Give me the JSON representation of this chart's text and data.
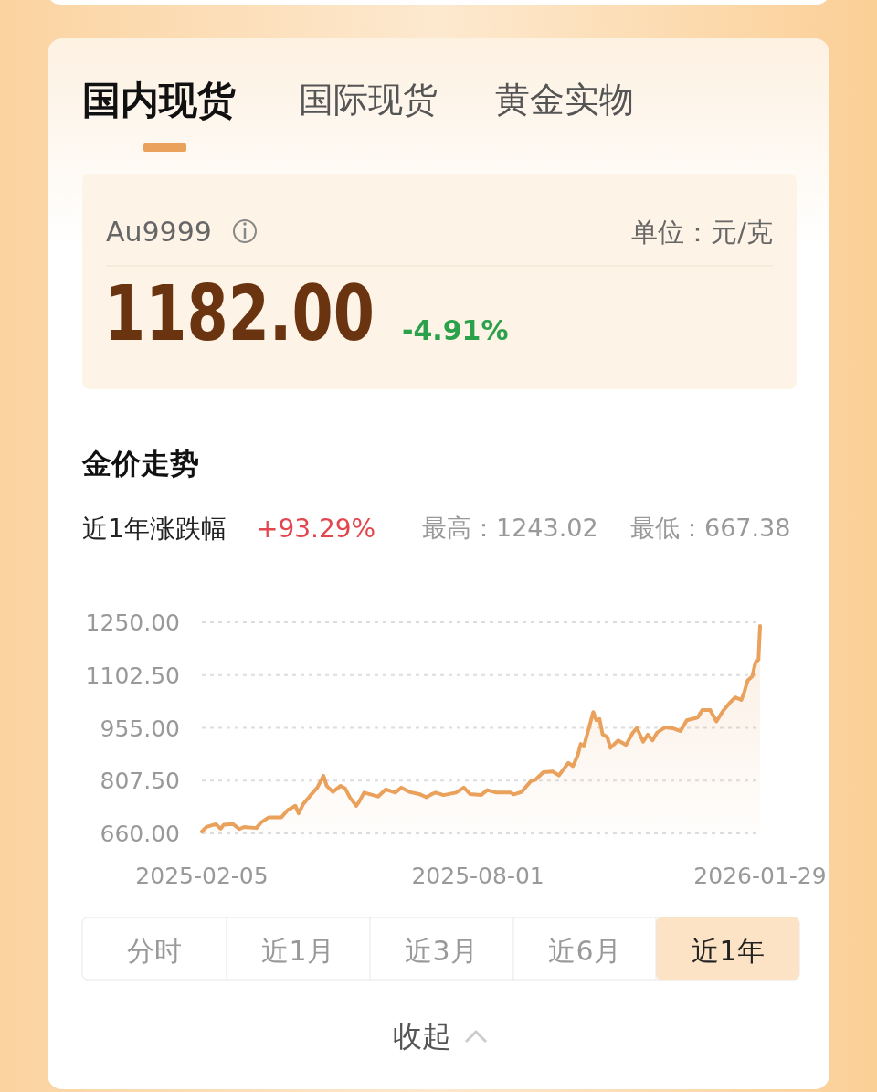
{
  "chart_data": {
    "type": "area",
    "title": "金价走势",
    "color": "#e9a15c",
    "grid": "y",
    "xlim": [
      "2025-02-05",
      "2026-01-29"
    ],
    "xticks": [
      "2025-02-05",
      "2025-08-01",
      "2026-01-29"
    ],
    "ylim": [
      660,
      1250
    ],
    "yticks": [
      {
        "value": 660,
        "label": "660.00"
      },
      {
        "value": 807.5,
        "label": "807.50"
      },
      {
        "value": 955,
        "label": "955.00"
      },
      {
        "value": 1102.5,
        "label": "1102.50"
      },
      {
        "value": 1250,
        "label": "1250.00"
      }
    ],
    "x": [
      "2025-02-05",
      "2025-02-08",
      "2025-02-14",
      "2025-02-17",
      "2025-02-19",
      "2025-02-25",
      "2025-03-01",
      "2025-03-04",
      "2025-03-12",
      "2025-03-15",
      "2025-03-20",
      "2025-03-28",
      "2025-04-01",
      "2025-04-06",
      "2025-04-08",
      "2025-04-11",
      "2025-04-15",
      "2025-04-20",
      "2025-04-24",
      "2025-04-26",
      "2025-04-30",
      "2025-05-05",
      "2025-05-08",
      "2025-05-11",
      "2025-05-15",
      "2025-05-17",
      "2025-05-20",
      "2025-05-29",
      "2025-06-03",
      "2025-06-09",
      "2025-06-13",
      "2025-06-18",
      "2025-06-25",
      "2025-06-29",
      "2025-07-03",
      "2025-07-05",
      "2025-07-10",
      "2025-07-18",
      "2025-07-23",
      "2025-07-27",
      "2025-08-03",
      "2025-08-07",
      "2025-08-13",
      "2025-08-22",
      "2025-08-24",
      "2025-08-29",
      "2025-09-04",
      "2025-09-07",
      "2025-09-12",
      "2025-09-18",
      "2025-09-22",
      "2025-09-28",
      "2025-10-01",
      "2025-10-04",
      "2025-10-06",
      "2025-10-08",
      "2025-10-14",
      "2025-10-16",
      "2025-10-18",
      "2025-10-20",
      "2025-10-23",
      "2025-10-25",
      "2025-10-30",
      "2025-11-04",
      "2025-11-08",
      "2025-11-11",
      "2025-11-15",
      "2025-11-18",
      "2025-11-21",
      "2025-11-24",
      "2025-11-29",
      "2025-12-04",
      "2025-12-09",
      "2025-12-13",
      "2025-12-20",
      "2025-12-23",
      "2025-12-28",
      "2026-01-01",
      "2026-01-05",
      "2026-01-10",
      "2026-01-13",
      "2026-01-17",
      "2026-01-19",
      "2026-01-21",
      "2026-01-24",
      "2026-01-26",
      "2026-01-28",
      "2026-01-29"
    ],
    "values": [
      665,
      678,
      686,
      673,
      684,
      686,
      672,
      678,
      675,
      691,
      705,
      705,
      725,
      737,
      716,
      742,
      763,
      788,
      821,
      793,
      776,
      793,
      785,
      760,
      737,
      750,
      774,
      763,
      783,
      774,
      788,
      776,
      769,
      761,
      771,
      774,
      767,
      774,
      788,
      770,
      767,
      781,
      774,
      774,
      769,
      776,
      806,
      810,
      831,
      833,
      822,
      857,
      848,
      878,
      910,
      903,
      999,
      976,
      980,
      937,
      929,
      899,
      920,
      907,
      939,
      955,
      916,
      936,
      920,
      942,
      956,
      954,
      946,
      976,
      984,
      1005,
      1005,
      973,
      1001,
      1027,
      1040,
      1033,
      1057,
      1087,
      1099,
      1137,
      1146,
      1240
    ],
    "annotations": [
      "国内现货",
      "国际现货",
      "黄金实物",
      "Au9999",
      "单位：元/克",
      "1182.00",
      "-4.91%",
      "近1年涨跌幅",
      "+93.29%",
      "最高：1243.02",
      "最低：667.38",
      "分时",
      "近1月",
      "近3月",
      "近6月",
      "近1年",
      "收起"
    ]
  }
}
